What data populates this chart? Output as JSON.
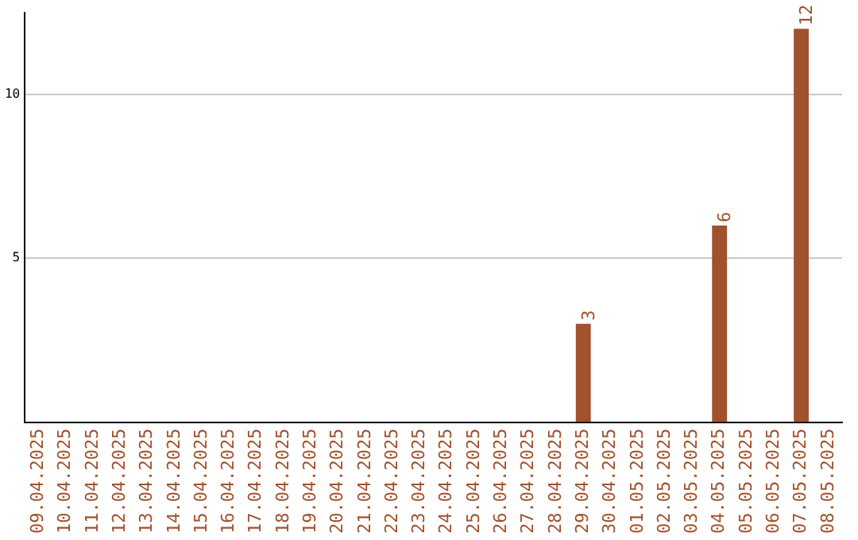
{
  "chart_data": {
    "type": "bar",
    "categories": [
      "09.04.2025",
      "10.04.2025",
      "11.04.2025",
      "12.04.2025",
      "13.04.2025",
      "14.04.2025",
      "15.04.2025",
      "16.04.2025",
      "17.04.2025",
      "18.04.2025",
      "19.04.2025",
      "20.04.2025",
      "21.04.2025",
      "22.04.2025",
      "23.04.2025",
      "24.04.2025",
      "25.04.2025",
      "26.04.2025",
      "27.04.2025",
      "28.04.2025",
      "29.04.2025",
      "30.04.2025",
      "01.05.2025",
      "02.05.2025",
      "03.05.2025",
      "04.05.2025",
      "05.05.2025",
      "06.05.2025",
      "07.05.2025",
      "08.05.2025"
    ],
    "values": [
      0,
      0,
      0,
      0,
      0,
      0,
      0,
      0,
      0,
      0,
      0,
      0,
      0,
      0,
      0,
      0,
      0,
      0,
      0,
      0,
      3,
      0,
      0,
      0,
      0,
      6,
      0,
      0,
      12,
      0
    ],
    "value_labels": [
      null,
      null,
      null,
      null,
      null,
      null,
      null,
      null,
      null,
      null,
      null,
      null,
      null,
      null,
      null,
      null,
      null,
      null,
      null,
      null,
      "3",
      null,
      null,
      null,
      null,
      "6",
      null,
      null,
      "12",
      null
    ],
    "color": "#a0522d",
    "ylim": [
      0,
      12.5
    ],
    "yticks": [
      5,
      10
    ],
    "grid": "y",
    "legend": false
  }
}
